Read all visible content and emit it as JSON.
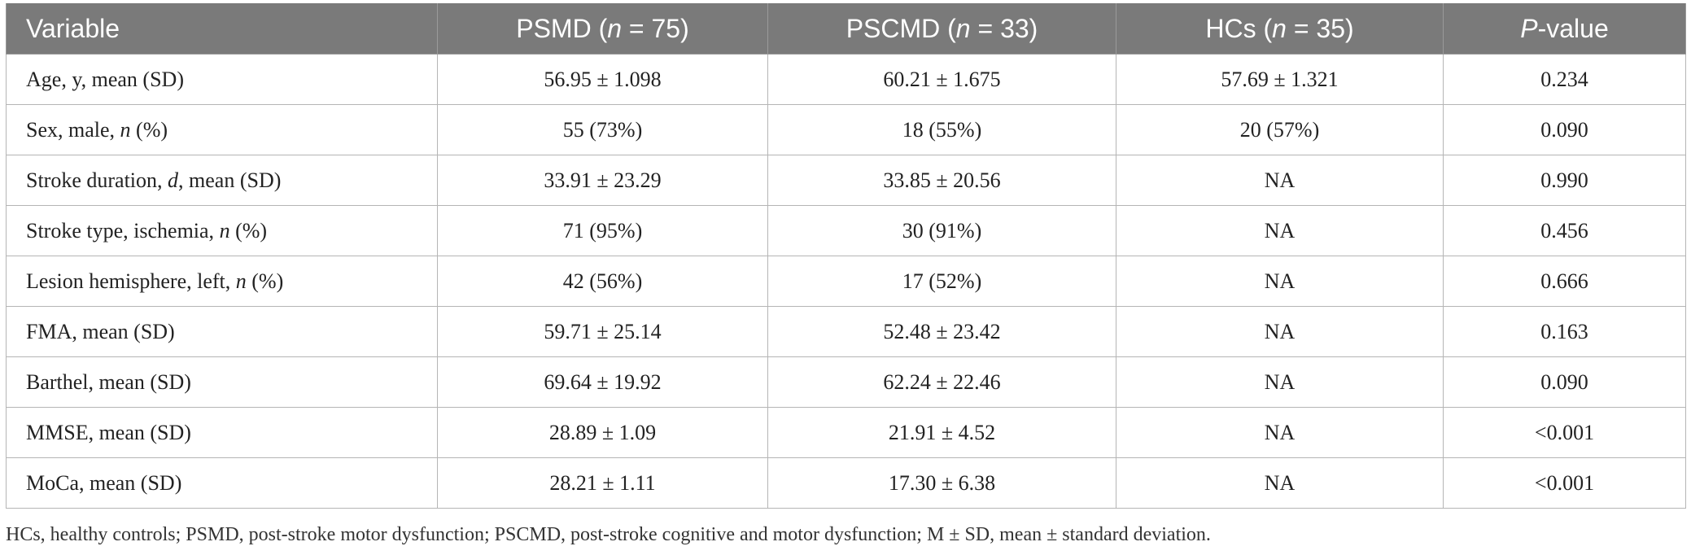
{
  "table": {
    "headers": [
      {
        "pre": "Variable",
        "it": "",
        "post": ""
      },
      {
        "pre": "PSMD (",
        "it": "n",
        "post": " = 75)"
      },
      {
        "pre": "PSCMD (",
        "it": "n",
        "post": " = 33)"
      },
      {
        "pre": "HCs (",
        "it": "n",
        "post": " = 35)"
      },
      {
        "pre": "",
        "it": "P",
        "post": "-value"
      }
    ],
    "rows": [
      {
        "label": {
          "pre": "Age, y, mean (SD)",
          "it": "",
          "post": ""
        },
        "psmd": "56.95 ± 1.098",
        "pscmd": "60.21 ± 1.675",
        "hcs": "57.69 ± 1.321",
        "p": "0.234"
      },
      {
        "label": {
          "pre": "Sex, male, ",
          "it": "n",
          "post": " (%)"
        },
        "psmd": "55 (73%)",
        "pscmd": "18 (55%)",
        "hcs": "20 (57%)",
        "p": "0.090"
      },
      {
        "label": {
          "pre": "Stroke duration, ",
          "it": "d",
          "post": ", mean (SD)"
        },
        "psmd": "33.91 ± 23.29",
        "pscmd": "33.85 ± 20.56",
        "hcs": "NA",
        "p": "0.990"
      },
      {
        "label": {
          "pre": "Stroke type, ischemia, ",
          "it": "n",
          "post": " (%)"
        },
        "psmd": "71 (95%)",
        "pscmd": "30 (91%)",
        "hcs": "NA",
        "p": "0.456"
      },
      {
        "label": {
          "pre": "Lesion hemisphere, left, ",
          "it": "n",
          "post": " (%)"
        },
        "psmd": "42 (56%)",
        "pscmd": "17 (52%)",
        "hcs": "NA",
        "p": "0.666"
      },
      {
        "label": {
          "pre": "FMA, mean (SD)",
          "it": "",
          "post": ""
        },
        "psmd": "59.71 ± 25.14",
        "pscmd": "52.48 ± 23.42",
        "hcs": "NA",
        "p": "0.163"
      },
      {
        "label": {
          "pre": "Barthel, mean (SD)",
          "it": "",
          "post": ""
        },
        "psmd": "69.64 ± 19.92",
        "pscmd": "62.24 ± 22.46",
        "hcs": "NA",
        "p": "0.090"
      },
      {
        "label": {
          "pre": "MMSE, mean (SD)",
          "it": "",
          "post": ""
        },
        "psmd": "28.89 ± 1.09",
        "pscmd": "21.91 ± 4.52",
        "hcs": "NA",
        "p": "<0.001"
      },
      {
        "label": {
          "pre": "MoCa, mean (SD)",
          "it": "",
          "post": ""
        },
        "psmd": "28.21 ± 1.11",
        "pscmd": "17.30 ± 6.38",
        "hcs": "NA",
        "p": "<0.001"
      }
    ]
  },
  "footnote": "HCs, healthy controls; PSMD, post-stroke motor dysfunction; PSCMD, post-stroke cognitive and motor dysfunction; M ± SD, mean ± standard deviation."
}
